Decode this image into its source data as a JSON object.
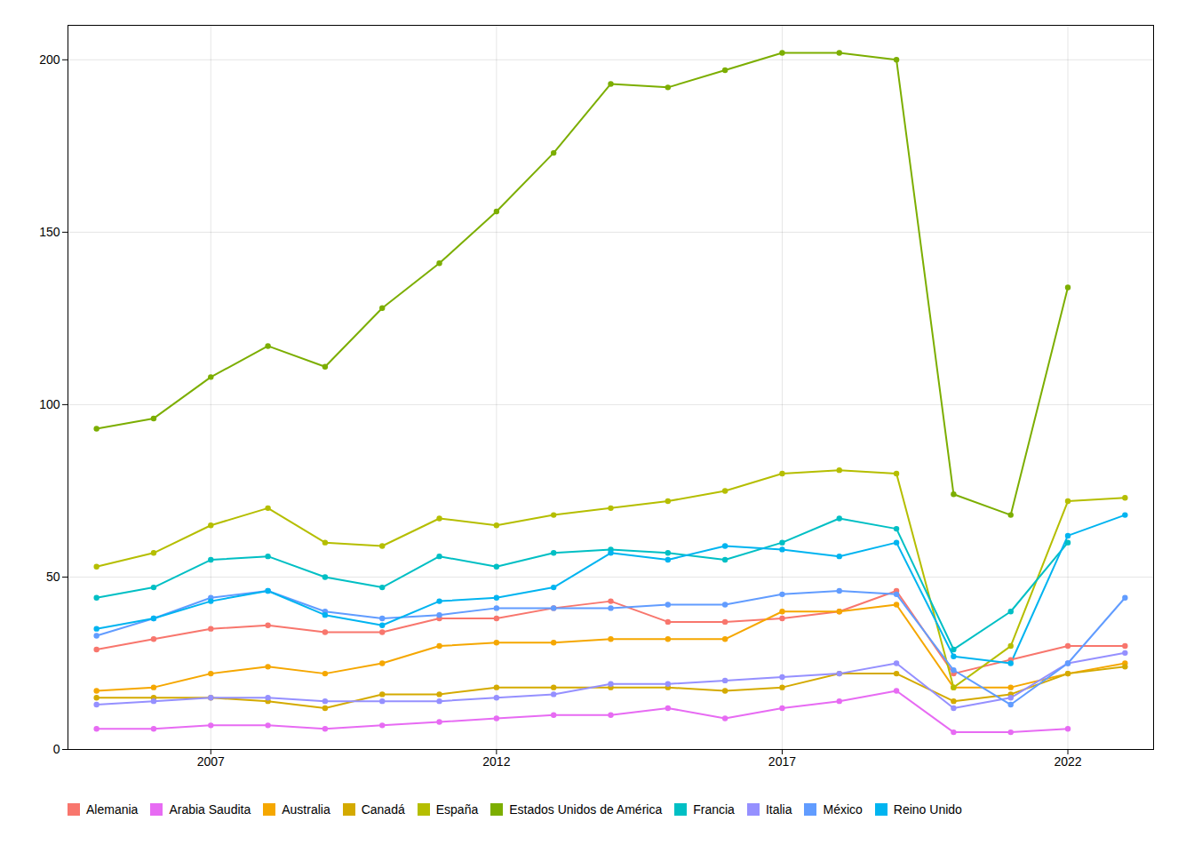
{
  "chart_data": {
    "type": "line",
    "x": [
      2005,
      2006,
      2007,
      2008,
      2009,
      2010,
      2011,
      2012,
      2013,
      2014,
      2015,
      2016,
      2017,
      2018,
      2019,
      2020,
      2021,
      2022,
      2023
    ],
    "series": [
      {
        "name": "Alemania",
        "color": "#F8766D",
        "values": [
          29,
          32,
          35,
          36,
          34,
          34,
          38,
          38,
          41,
          43,
          37,
          37,
          38,
          40,
          46,
          22,
          26,
          30,
          30
        ]
      },
      {
        "name": "Arabia Saudita",
        "color": "#E76BF3",
        "values": [
          6,
          6,
          7,
          7,
          6,
          7,
          8,
          9,
          10,
          10,
          12,
          9,
          12,
          14,
          17,
          5,
          5,
          6,
          null
        ]
      },
      {
        "name": "Australia",
        "color": "#F5A700",
        "values": [
          17,
          18,
          22,
          24,
          22,
          25,
          30,
          31,
          31,
          32,
          32,
          32,
          40,
          40,
          42,
          18,
          18,
          22,
          25
        ]
      },
      {
        "name": "Canadá",
        "color": "#D4AA00",
        "values": [
          15,
          15,
          15,
          14,
          12,
          16,
          16,
          18,
          18,
          18,
          18,
          17,
          18,
          22,
          22,
          14,
          16,
          22,
          24
        ]
      },
      {
        "name": "España",
        "color": "#B5BE00",
        "values": [
          53,
          57,
          65,
          70,
          60,
          59,
          67,
          65,
          68,
          70,
          72,
          75,
          80,
          81,
          80,
          18,
          30,
          72,
          73
        ]
      },
      {
        "name": "Estados Unidos de América",
        "color": "#7CAE00",
        "values": [
          93,
          96,
          108,
          117,
          111,
          128,
          141,
          156,
          173,
          193,
          192,
          197,
          202,
          202,
          200,
          74,
          68,
          134,
          null
        ]
      },
      {
        "name": "Francia",
        "color": "#00BFC4",
        "values": [
          44,
          47,
          55,
          56,
          50,
          47,
          56,
          53,
          57,
          58,
          57,
          55,
          60,
          67,
          64,
          29,
          40,
          60,
          null
        ]
      },
      {
        "name": "Italia",
        "color": "#9590FF",
        "values": [
          13,
          14,
          15,
          15,
          14,
          14,
          14,
          15,
          16,
          19,
          19,
          20,
          21,
          22,
          25,
          12,
          15,
          25,
          28
        ]
      },
      {
        "name": "México",
        "color": "#619CFF",
        "values": [
          33,
          38,
          44,
          46,
          40,
          38,
          39,
          41,
          41,
          41,
          42,
          42,
          45,
          46,
          45,
          23,
          13,
          25,
          44
        ]
      },
      {
        "name": "Reino Unido",
        "color": "#00B4F0",
        "values": [
          35,
          38,
          43,
          46,
          39,
          36,
          43,
          44,
          47,
          57,
          55,
          59,
          58,
          56,
          60,
          27,
          25,
          62,
          68
        ]
      }
    ],
    "xlim": [
      2004.5,
      2023.5
    ],
    "xticks": [
      2007,
      2012,
      2017,
      2022
    ],
    "ylim": [
      0,
      210
    ],
    "yticks": [
      0,
      50,
      100,
      150,
      200
    ],
    "grid": true,
    "legend": "bottom",
    "marker": "circle"
  }
}
